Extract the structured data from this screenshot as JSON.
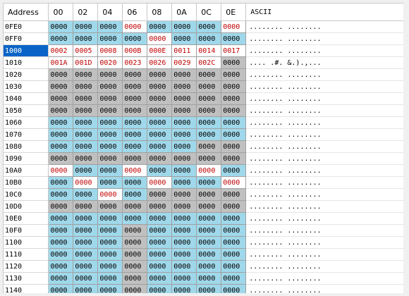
{
  "header": {
    "address": "Address",
    "columns": [
      "00",
      "02",
      "04",
      "06",
      "08",
      "0A",
      "0C",
      "0E"
    ],
    "ascii": "ASCII"
  },
  "colors": {
    "blue": "#9fd8ea",
    "gray": "#c0c0c0",
    "red_text": "#c00000",
    "selected": "#0a64c8"
  },
  "rows": [
    {
      "addr": "0FE0",
      "sel": false,
      "cells": [
        {
          "v": "0000",
          "c": "b",
          "r": false
        },
        {
          "v": "0000",
          "c": "b",
          "r": false
        },
        {
          "v": "0000",
          "c": "b",
          "r": false
        },
        {
          "v": "0000",
          "c": "w",
          "r": true
        },
        {
          "v": "0000",
          "c": "b",
          "r": false
        },
        {
          "v": "0000",
          "c": "b",
          "r": false
        },
        {
          "v": "0000",
          "c": "b",
          "r": false
        },
        {
          "v": "0000",
          "c": "w",
          "r": true
        }
      ],
      "ascii": "........ ........"
    },
    {
      "addr": "0FF0",
      "sel": false,
      "cells": [
        {
          "v": "0000",
          "c": "b",
          "r": false
        },
        {
          "v": "0000",
          "c": "b",
          "r": false
        },
        {
          "v": "0000",
          "c": "b",
          "r": false
        },
        {
          "v": "0000",
          "c": "b",
          "r": false
        },
        {
          "v": "0000",
          "c": "w",
          "r": true
        },
        {
          "v": "0000",
          "c": "b",
          "r": false
        },
        {
          "v": "0000",
          "c": "b",
          "r": false
        },
        {
          "v": "0000",
          "c": "b",
          "r": false
        }
      ],
      "ascii": "........ ........"
    },
    {
      "addr": "1000",
      "sel": true,
      "cells": [
        {
          "v": "0002",
          "c": "w",
          "r": true
        },
        {
          "v": "0005",
          "c": "w",
          "r": true
        },
        {
          "v": "0008",
          "c": "w",
          "r": true
        },
        {
          "v": "000B",
          "c": "w",
          "r": true
        },
        {
          "v": "000E",
          "c": "w",
          "r": true
        },
        {
          "v": "0011",
          "c": "w",
          "r": true
        },
        {
          "v": "0014",
          "c": "w",
          "r": true
        },
        {
          "v": "0017",
          "c": "w",
          "r": true
        }
      ],
      "ascii": "........ ........"
    },
    {
      "addr": "1010",
      "sel": false,
      "cells": [
        {
          "v": "001A",
          "c": "w",
          "r": true
        },
        {
          "v": "001D",
          "c": "w",
          "r": true
        },
        {
          "v": "0020",
          "c": "w",
          "r": true
        },
        {
          "v": "0023",
          "c": "w",
          "r": true
        },
        {
          "v": "0026",
          "c": "w",
          "r": true
        },
        {
          "v": "0029",
          "c": "w",
          "r": true
        },
        {
          "v": "002C",
          "c": "w",
          "r": true
        },
        {
          "v": "0000",
          "c": "g",
          "r": false
        }
      ],
      "ascii": ".... .#. &.).,..."
    },
    {
      "addr": "1020",
      "sel": false,
      "cells": [
        {
          "v": "0000",
          "c": "g",
          "r": false
        },
        {
          "v": "0000",
          "c": "g",
          "r": false
        },
        {
          "v": "0000",
          "c": "g",
          "r": false
        },
        {
          "v": "0000",
          "c": "g",
          "r": false
        },
        {
          "v": "0000",
          "c": "g",
          "r": false
        },
        {
          "v": "0000",
          "c": "g",
          "r": false
        },
        {
          "v": "0000",
          "c": "g",
          "r": false
        },
        {
          "v": "0000",
          "c": "g",
          "r": false
        }
      ],
      "ascii": "........ ........"
    },
    {
      "addr": "1030",
      "sel": false,
      "cells": [
        {
          "v": "0000",
          "c": "g",
          "r": false
        },
        {
          "v": "0000",
          "c": "g",
          "r": false
        },
        {
          "v": "0000",
          "c": "g",
          "r": false
        },
        {
          "v": "0000",
          "c": "g",
          "r": false
        },
        {
          "v": "0000",
          "c": "g",
          "r": false
        },
        {
          "v": "0000",
          "c": "g",
          "r": false
        },
        {
          "v": "0000",
          "c": "g",
          "r": false
        },
        {
          "v": "0000",
          "c": "g",
          "r": false
        }
      ],
      "ascii": "........ ........"
    },
    {
      "addr": "1040",
      "sel": false,
      "cells": [
        {
          "v": "0000",
          "c": "g",
          "r": false
        },
        {
          "v": "0000",
          "c": "g",
          "r": false
        },
        {
          "v": "0000",
          "c": "g",
          "r": false
        },
        {
          "v": "0000",
          "c": "g",
          "r": false
        },
        {
          "v": "0000",
          "c": "g",
          "r": false
        },
        {
          "v": "0000",
          "c": "g",
          "r": false
        },
        {
          "v": "0000",
          "c": "g",
          "r": false
        },
        {
          "v": "0000",
          "c": "g",
          "r": false
        }
      ],
      "ascii": "........ ........"
    },
    {
      "addr": "1050",
      "sel": false,
      "cells": [
        {
          "v": "0000",
          "c": "g",
          "r": false
        },
        {
          "v": "0000",
          "c": "g",
          "r": false
        },
        {
          "v": "0000",
          "c": "g",
          "r": false
        },
        {
          "v": "0000",
          "c": "g",
          "r": false
        },
        {
          "v": "0000",
          "c": "g",
          "r": false
        },
        {
          "v": "0000",
          "c": "g",
          "r": false
        },
        {
          "v": "0000",
          "c": "g",
          "r": false
        },
        {
          "v": "0000",
          "c": "g",
          "r": false
        }
      ],
      "ascii": "........ ........"
    },
    {
      "addr": "1060",
      "sel": false,
      "cells": [
        {
          "v": "0000",
          "c": "b",
          "r": false
        },
        {
          "v": "0000",
          "c": "b",
          "r": false
        },
        {
          "v": "0000",
          "c": "b",
          "r": false
        },
        {
          "v": "0000",
          "c": "b",
          "r": false
        },
        {
          "v": "0000",
          "c": "b",
          "r": false
        },
        {
          "v": "0000",
          "c": "b",
          "r": false
        },
        {
          "v": "0000",
          "c": "b",
          "r": false
        },
        {
          "v": "0000",
          "c": "b",
          "r": false
        }
      ],
      "ascii": "........ ........"
    },
    {
      "addr": "1070",
      "sel": false,
      "cells": [
        {
          "v": "0000",
          "c": "b",
          "r": false
        },
        {
          "v": "0000",
          "c": "b",
          "r": false
        },
        {
          "v": "0000",
          "c": "b",
          "r": false
        },
        {
          "v": "0000",
          "c": "b",
          "r": false
        },
        {
          "v": "0000",
          "c": "b",
          "r": false
        },
        {
          "v": "0000",
          "c": "b",
          "r": false
        },
        {
          "v": "0000",
          "c": "b",
          "r": false
        },
        {
          "v": "0000",
          "c": "b",
          "r": false
        }
      ],
      "ascii": "........ ........"
    },
    {
      "addr": "1080",
      "sel": false,
      "cells": [
        {
          "v": "0000",
          "c": "b",
          "r": false
        },
        {
          "v": "0000",
          "c": "b",
          "r": false
        },
        {
          "v": "0000",
          "c": "b",
          "r": false
        },
        {
          "v": "0000",
          "c": "b",
          "r": false
        },
        {
          "v": "0000",
          "c": "b",
          "r": false
        },
        {
          "v": "0000",
          "c": "b",
          "r": false
        },
        {
          "v": "0000",
          "c": "g",
          "r": false
        },
        {
          "v": "0000",
          "c": "g",
          "r": false
        }
      ],
      "ascii": "........ ........"
    },
    {
      "addr": "1090",
      "sel": false,
      "cells": [
        {
          "v": "0000",
          "c": "g",
          "r": false
        },
        {
          "v": "0000",
          "c": "g",
          "r": false
        },
        {
          "v": "0000",
          "c": "g",
          "r": false
        },
        {
          "v": "0000",
          "c": "g",
          "r": false
        },
        {
          "v": "0000",
          "c": "g",
          "r": false
        },
        {
          "v": "0000",
          "c": "g",
          "r": false
        },
        {
          "v": "0000",
          "c": "g",
          "r": false
        },
        {
          "v": "0000",
          "c": "g",
          "r": false
        }
      ],
      "ascii": "........ ........"
    },
    {
      "addr": "10A0",
      "sel": false,
      "cells": [
        {
          "v": "0000",
          "c": "w",
          "r": true
        },
        {
          "v": "0000",
          "c": "b",
          "r": false
        },
        {
          "v": "0000",
          "c": "b",
          "r": false
        },
        {
          "v": "0000",
          "c": "w",
          "r": true
        },
        {
          "v": "0000",
          "c": "b",
          "r": false
        },
        {
          "v": "0000",
          "c": "b",
          "r": false
        },
        {
          "v": "0000",
          "c": "w",
          "r": true
        },
        {
          "v": "0000",
          "c": "b",
          "r": false
        }
      ],
      "ascii": "........ ........"
    },
    {
      "addr": "10B0",
      "sel": false,
      "cells": [
        {
          "v": "0000",
          "c": "b",
          "r": false
        },
        {
          "v": "0000",
          "c": "w",
          "r": true
        },
        {
          "v": "0000",
          "c": "b",
          "r": false
        },
        {
          "v": "0000",
          "c": "b",
          "r": false
        },
        {
          "v": "0000",
          "c": "w",
          "r": true
        },
        {
          "v": "0000",
          "c": "b",
          "r": false
        },
        {
          "v": "0000",
          "c": "b",
          "r": false
        },
        {
          "v": "0000",
          "c": "w",
          "r": true
        }
      ],
      "ascii": "........ ........"
    },
    {
      "addr": "10C0",
      "sel": false,
      "cells": [
        {
          "v": "0000",
          "c": "b",
          "r": false
        },
        {
          "v": "0000",
          "c": "b",
          "r": false
        },
        {
          "v": "0000",
          "c": "w",
          "r": true
        },
        {
          "v": "0000",
          "c": "b",
          "r": false
        },
        {
          "v": "0000",
          "c": "g",
          "r": false
        },
        {
          "v": "0000",
          "c": "g",
          "r": false
        },
        {
          "v": "0000",
          "c": "g",
          "r": false
        },
        {
          "v": "0000",
          "c": "g",
          "r": false
        }
      ],
      "ascii": "........ ........"
    },
    {
      "addr": "10D0",
      "sel": false,
      "cells": [
        {
          "v": "0000",
          "c": "g",
          "r": false
        },
        {
          "v": "0000",
          "c": "g",
          "r": false
        },
        {
          "v": "0000",
          "c": "g",
          "r": false
        },
        {
          "v": "0000",
          "c": "g",
          "r": false
        },
        {
          "v": "0000",
          "c": "g",
          "r": false
        },
        {
          "v": "0000",
          "c": "g",
          "r": false
        },
        {
          "v": "0000",
          "c": "g",
          "r": false
        },
        {
          "v": "0000",
          "c": "g",
          "r": false
        }
      ],
      "ascii": "........ ........"
    },
    {
      "addr": "10E0",
      "sel": false,
      "cells": [
        {
          "v": "0000",
          "c": "b",
          "r": false
        },
        {
          "v": "0000",
          "c": "b",
          "r": false
        },
        {
          "v": "0000",
          "c": "b",
          "r": false
        },
        {
          "v": "0000",
          "c": "b",
          "r": false
        },
        {
          "v": "0000",
          "c": "b",
          "r": false
        },
        {
          "v": "0000",
          "c": "b",
          "r": false
        },
        {
          "v": "0000",
          "c": "b",
          "r": false
        },
        {
          "v": "0000",
          "c": "b",
          "r": false
        }
      ],
      "ascii": "........ ........"
    },
    {
      "addr": "10F0",
      "sel": false,
      "cells": [
        {
          "v": "0000",
          "c": "b",
          "r": false
        },
        {
          "v": "0000",
          "c": "b",
          "r": false
        },
        {
          "v": "0000",
          "c": "b",
          "r": false
        },
        {
          "v": "0000",
          "c": "g",
          "r": false
        },
        {
          "v": "0000",
          "c": "b",
          "r": false
        },
        {
          "v": "0000",
          "c": "b",
          "r": false
        },
        {
          "v": "0000",
          "c": "b",
          "r": false
        },
        {
          "v": "0000",
          "c": "b",
          "r": false
        }
      ],
      "ascii": "........ ........"
    },
    {
      "addr": "1100",
      "sel": false,
      "cells": [
        {
          "v": "0000",
          "c": "b",
          "r": false
        },
        {
          "v": "0000",
          "c": "b",
          "r": false
        },
        {
          "v": "0000",
          "c": "b",
          "r": false
        },
        {
          "v": "0000",
          "c": "g",
          "r": false
        },
        {
          "v": "0000",
          "c": "b",
          "r": false
        },
        {
          "v": "0000",
          "c": "b",
          "r": false
        },
        {
          "v": "0000",
          "c": "b",
          "r": false
        },
        {
          "v": "0000",
          "c": "b",
          "r": false
        }
      ],
      "ascii": "........ ........"
    },
    {
      "addr": "1110",
      "sel": false,
      "cells": [
        {
          "v": "0000",
          "c": "b",
          "r": false
        },
        {
          "v": "0000",
          "c": "b",
          "r": false
        },
        {
          "v": "0000",
          "c": "b",
          "r": false
        },
        {
          "v": "0000",
          "c": "g",
          "r": false
        },
        {
          "v": "0000",
          "c": "b",
          "r": false
        },
        {
          "v": "0000",
          "c": "b",
          "r": false
        },
        {
          "v": "0000",
          "c": "b",
          "r": false
        },
        {
          "v": "0000",
          "c": "b",
          "r": false
        }
      ],
      "ascii": "........ ........"
    },
    {
      "addr": "1120",
      "sel": false,
      "cells": [
        {
          "v": "0000",
          "c": "b",
          "r": false
        },
        {
          "v": "0000",
          "c": "b",
          "r": false
        },
        {
          "v": "0000",
          "c": "b",
          "r": false
        },
        {
          "v": "0000",
          "c": "g",
          "r": false
        },
        {
          "v": "0000",
          "c": "b",
          "r": false
        },
        {
          "v": "0000",
          "c": "b",
          "r": false
        },
        {
          "v": "0000",
          "c": "b",
          "r": false
        },
        {
          "v": "0000",
          "c": "b",
          "r": false
        }
      ],
      "ascii": "........ ........"
    },
    {
      "addr": "1130",
      "sel": false,
      "cells": [
        {
          "v": "0000",
          "c": "b",
          "r": false
        },
        {
          "v": "0000",
          "c": "b",
          "r": false
        },
        {
          "v": "0000",
          "c": "b",
          "r": false
        },
        {
          "v": "0000",
          "c": "g",
          "r": false
        },
        {
          "v": "0000",
          "c": "b",
          "r": false
        },
        {
          "v": "0000",
          "c": "b",
          "r": false
        },
        {
          "v": "0000",
          "c": "b",
          "r": false
        },
        {
          "v": "0000",
          "c": "b",
          "r": false
        }
      ],
      "ascii": "........ ........"
    },
    {
      "addr": "1140",
      "sel": false,
      "cells": [
        {
          "v": "0000",
          "c": "b",
          "r": false
        },
        {
          "v": "0000",
          "c": "b",
          "r": false
        },
        {
          "v": "0000",
          "c": "b",
          "r": false
        },
        {
          "v": "0000",
          "c": "g",
          "r": false
        },
        {
          "v": "0000",
          "c": "b",
          "r": false
        },
        {
          "v": "0000",
          "c": "b",
          "r": false
        },
        {
          "v": "0000",
          "c": "b",
          "r": false
        },
        {
          "v": "0000",
          "c": "b",
          "r": false
        }
      ],
      "ascii": "........ ........"
    }
  ]
}
